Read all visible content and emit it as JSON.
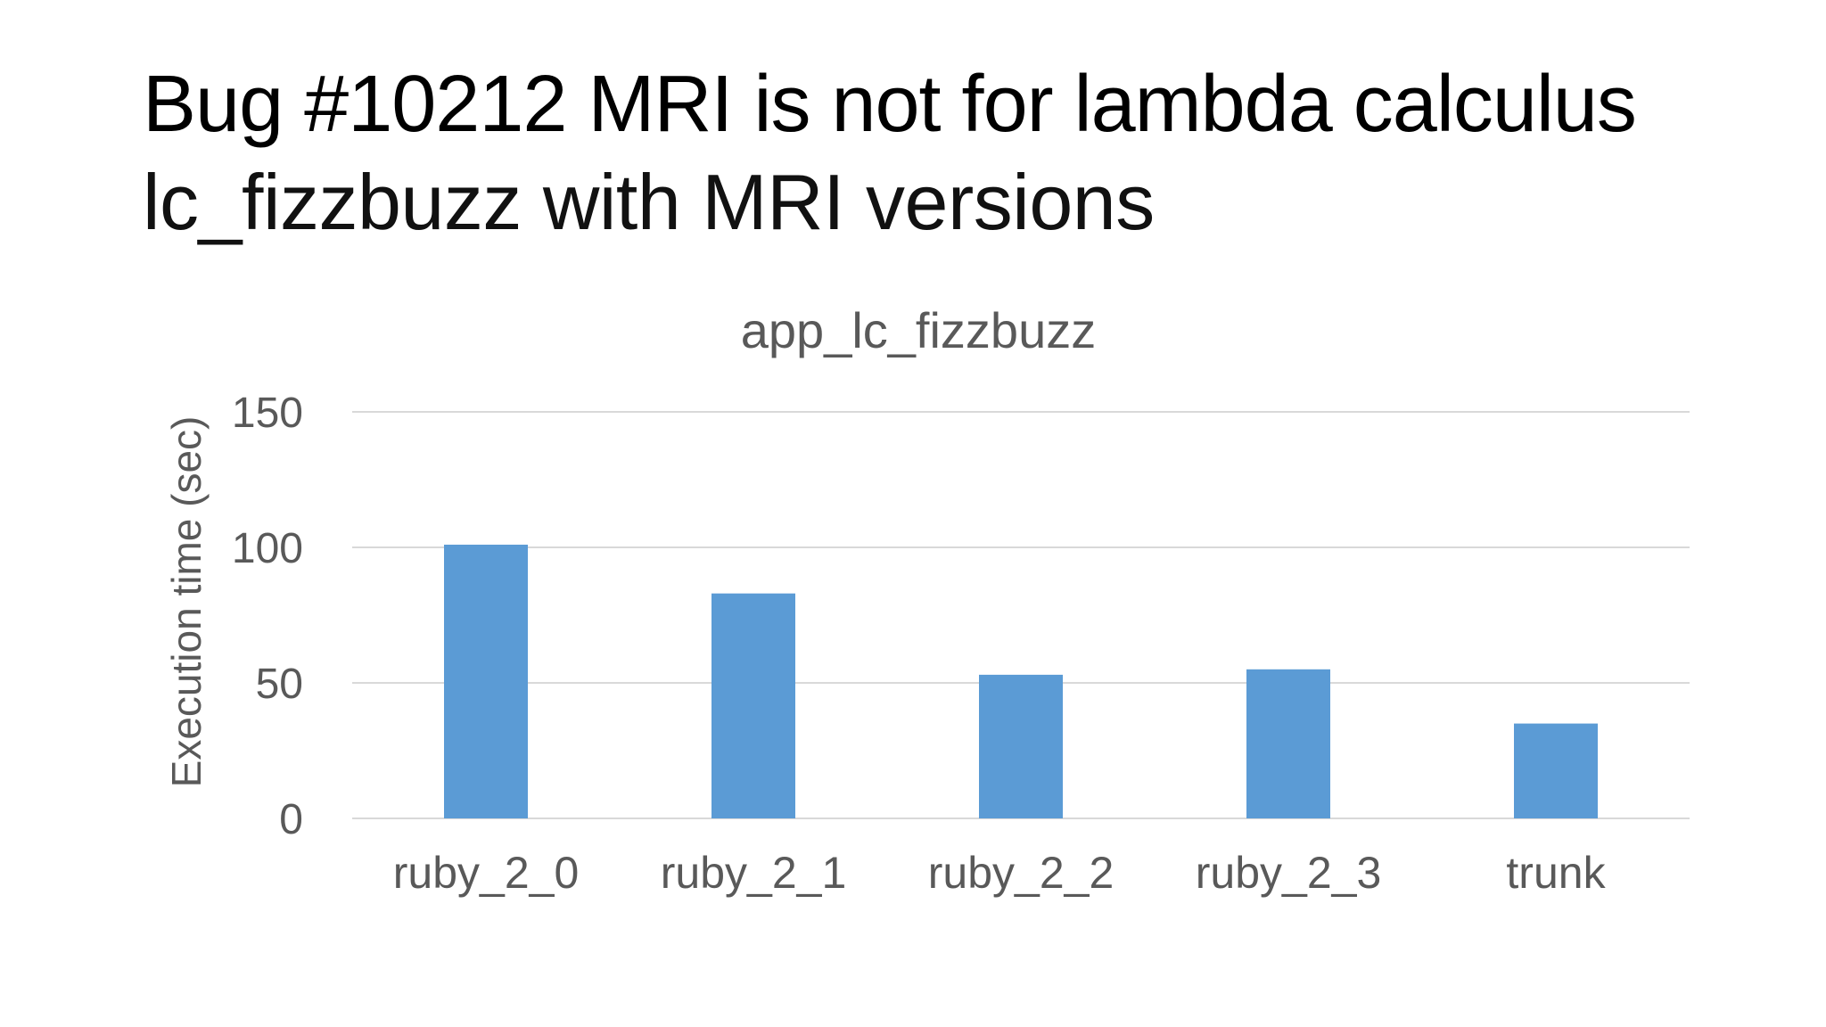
{
  "slide": {
    "title": "Bug #10212 MRI is not for lambda calculus",
    "subtitle": "lc_fizzbuzz with MRI versions"
  },
  "chart_data": {
    "type": "bar",
    "title": "app_lc_fizzbuzz",
    "xlabel": "",
    "ylabel": "Execution time (sec)",
    "categories": [
      "ruby_2_0",
      "ruby_2_1",
      "ruby_2_2",
      "ruby_2_3",
      "trunk"
    ],
    "values": [
      101,
      83,
      53,
      55,
      35
    ],
    "ylim": [
      0,
      150
    ],
    "yticks": [
      0,
      50,
      100,
      150
    ],
    "ytick_labels": [
      "0",
      "50",
      "100",
      "150"
    ],
    "grid": true,
    "legend": "none",
    "bar_color": "#5B9BD5",
    "grid_color": "#D9D9D9",
    "text_color": "#595959"
  }
}
